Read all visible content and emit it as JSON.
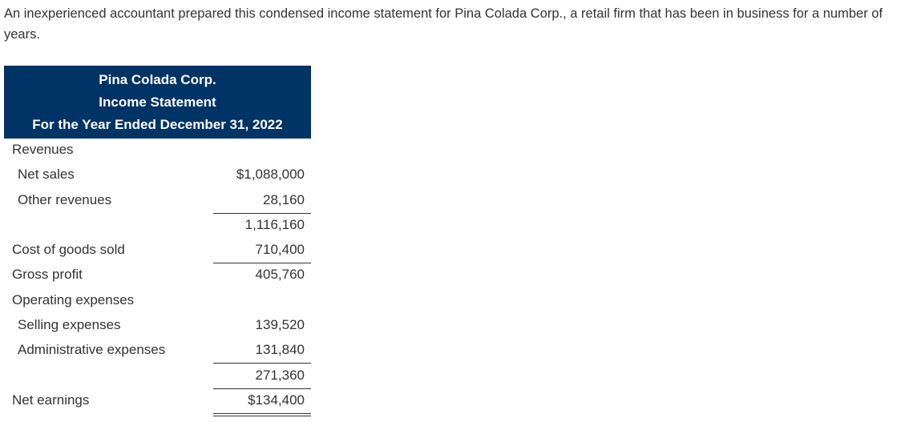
{
  "intro_text": "An inexperienced accountant prepared this condensed income statement for Pina Colada Corp., a retail firm that has been in business for a number of years.",
  "statement": {
    "company": "Pina Colada Corp.",
    "title": "Income Statement",
    "period": "For the Year Ended December 31, 2022",
    "rows": [
      {
        "label": "Revenues",
        "amount": ""
      },
      {
        "label": "Net sales",
        "amount": "$1,088,000"
      },
      {
        "label": "Other revenues",
        "amount": "28,160"
      },
      {
        "label": "",
        "amount": "1,116,160"
      },
      {
        "label": "Cost of goods sold",
        "amount": "710,400"
      },
      {
        "label": "Gross profit",
        "amount": "405,760"
      },
      {
        "label": "Operating expenses",
        "amount": ""
      },
      {
        "label": "Selling expenses",
        "amount": "139,520"
      },
      {
        "label": "Administrative expenses",
        "amount": "131,840"
      },
      {
        "label": "",
        "amount": "271,360"
      },
      {
        "label": "Net earnings",
        "amount": "$134,400"
      }
    ]
  }
}
